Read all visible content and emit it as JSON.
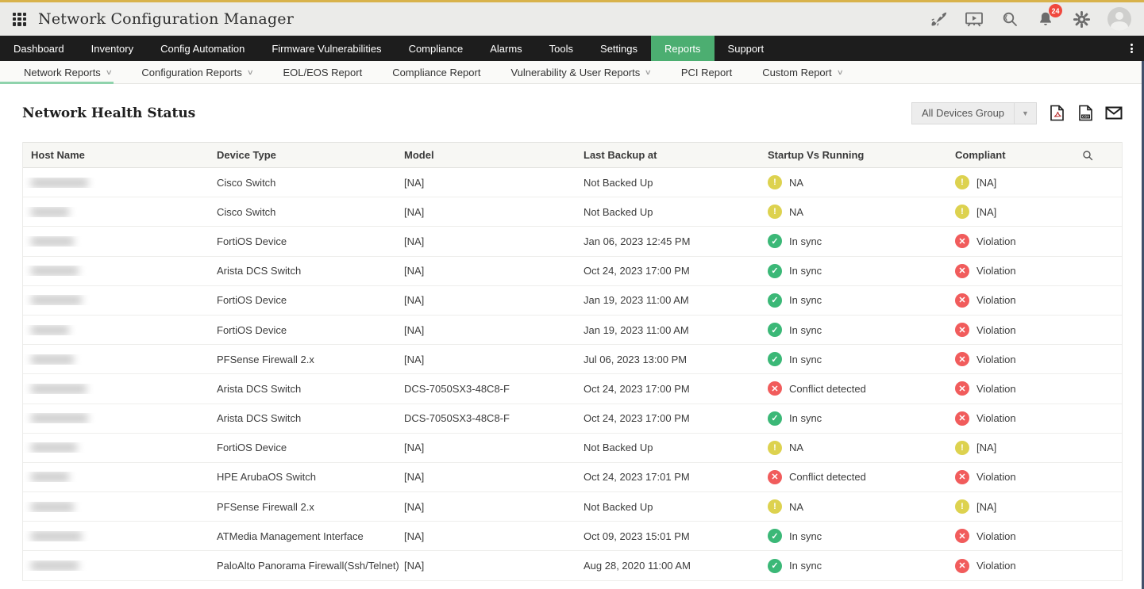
{
  "colors": {
    "accent": "#4cae71",
    "ok": "#3bb877",
    "warning": "#ddd24f",
    "error": "#f15c5c",
    "top_line": "#d8b24b",
    "nav_bg": "#1d1d1d"
  },
  "topbar": {
    "title": "Network Configuration Manager",
    "notification_count": "24",
    "icons": [
      "apps-grid-icon",
      "rocket-icon",
      "presentation-icon",
      "search-icon",
      "bell-icon",
      "gear-icon",
      "avatar"
    ]
  },
  "nav": {
    "items": [
      {
        "label": "Dashboard",
        "active": false
      },
      {
        "label": "Inventory",
        "active": false
      },
      {
        "label": "Config Automation",
        "active": false
      },
      {
        "label": "Firmware Vulnerabilities",
        "active": false
      },
      {
        "label": "Compliance",
        "active": false
      },
      {
        "label": "Alarms",
        "active": false
      },
      {
        "label": "Tools",
        "active": false
      },
      {
        "label": "Settings",
        "active": false
      },
      {
        "label": "Reports",
        "active": true
      },
      {
        "label": "Support",
        "active": false
      }
    ]
  },
  "subnav": {
    "items": [
      {
        "label": "Network Reports",
        "chevron": true,
        "active": true
      },
      {
        "label": "Configuration Reports",
        "chevron": true,
        "active": false
      },
      {
        "label": "EOL/EOS Report",
        "chevron": false,
        "active": false
      },
      {
        "label": "Compliance Report",
        "chevron": false,
        "active": false
      },
      {
        "label": "Vulnerability & User Reports",
        "chevron": true,
        "active": false
      },
      {
        "label": "PCI Report",
        "chevron": false,
        "active": false
      },
      {
        "label": "Custom Report",
        "chevron": true,
        "active": false
      }
    ]
  },
  "page": {
    "title": "Network Health Status",
    "device_group_selector": {
      "value": "All Devices Group"
    },
    "export_icons": [
      "pdf-export-icon",
      "csv-export-icon",
      "email-report-icon"
    ]
  },
  "table": {
    "columns": [
      "Host Name",
      "Device Type",
      "Model",
      "Last Backup at",
      "Startup Vs Running",
      "Compliant"
    ],
    "host_redacted": true,
    "host_redacted_widths": [
      72,
      48,
      54,
      60,
      64,
      48,
      54,
      70,
      72,
      58,
      48,
      54,
      64,
      60
    ],
    "rows": [
      {
        "device_type": "Cisco Switch",
        "model": "[NA]",
        "last_backup": "Not Backed Up",
        "startup_vs_running": {
          "status": "warning",
          "label": "NA"
        },
        "compliant": {
          "status": "warning",
          "label": "[NA]"
        }
      },
      {
        "device_type": "Cisco Switch",
        "model": "[NA]",
        "last_backup": "Not Backed Up",
        "startup_vs_running": {
          "status": "warning",
          "label": "NA"
        },
        "compliant": {
          "status": "warning",
          "label": "[NA]"
        }
      },
      {
        "device_type": "FortiOS Device",
        "model": "[NA]",
        "last_backup": "Jan 06, 2023 12:45 PM",
        "startup_vs_running": {
          "status": "ok",
          "label": "In sync"
        },
        "compliant": {
          "status": "error",
          "label": "Violation"
        }
      },
      {
        "device_type": "Arista DCS Switch",
        "model": "[NA]",
        "last_backup": "Oct 24, 2023 17:00 PM",
        "startup_vs_running": {
          "status": "ok",
          "label": "In sync"
        },
        "compliant": {
          "status": "error",
          "label": "Violation"
        }
      },
      {
        "device_type": "FortiOS Device",
        "model": "[NA]",
        "last_backup": "Jan 19, 2023 11:00 AM",
        "startup_vs_running": {
          "status": "ok",
          "label": "In sync"
        },
        "compliant": {
          "status": "error",
          "label": "Violation"
        }
      },
      {
        "device_type": "FortiOS Device",
        "model": "[NA]",
        "last_backup": "Jan 19, 2023 11:00 AM",
        "startup_vs_running": {
          "status": "ok",
          "label": "In sync"
        },
        "compliant": {
          "status": "error",
          "label": "Violation"
        }
      },
      {
        "device_type": "PFSense Firewall 2.x",
        "model": "[NA]",
        "last_backup": "Jul 06, 2023 13:00 PM",
        "startup_vs_running": {
          "status": "ok",
          "label": "In sync"
        },
        "compliant": {
          "status": "error",
          "label": "Violation"
        }
      },
      {
        "device_type": "Arista DCS Switch",
        "model": "DCS-7050SX3-48C8-F",
        "last_backup": "Oct 24, 2023 17:00 PM",
        "startup_vs_running": {
          "status": "error",
          "label": "Conflict detected"
        },
        "compliant": {
          "status": "error",
          "label": "Violation"
        }
      },
      {
        "device_type": "Arista DCS Switch",
        "model": "DCS-7050SX3-48C8-F",
        "last_backup": "Oct 24, 2023 17:00 PM",
        "startup_vs_running": {
          "status": "ok",
          "label": "In sync"
        },
        "compliant": {
          "status": "error",
          "label": "Violation"
        }
      },
      {
        "device_type": "FortiOS Device",
        "model": "[NA]",
        "last_backup": "Not Backed Up",
        "startup_vs_running": {
          "status": "warning",
          "label": "NA"
        },
        "compliant": {
          "status": "warning",
          "label": "[NA]"
        }
      },
      {
        "device_type": "HPE ArubaOS Switch",
        "model": "[NA]",
        "last_backup": "Oct 24, 2023 17:01 PM",
        "startup_vs_running": {
          "status": "error",
          "label": "Conflict detected"
        },
        "compliant": {
          "status": "error",
          "label": "Violation"
        }
      },
      {
        "device_type": "PFSense Firewall 2.x",
        "model": "[NA]",
        "last_backup": "Not Backed Up",
        "startup_vs_running": {
          "status": "warning",
          "label": "NA"
        },
        "compliant": {
          "status": "warning",
          "label": "[NA]"
        }
      },
      {
        "device_type": "ATMedia Management Interface",
        "model": "[NA]",
        "last_backup": "Oct 09, 2023 15:01 PM",
        "startup_vs_running": {
          "status": "ok",
          "label": "In sync"
        },
        "compliant": {
          "status": "error",
          "label": "Violation"
        }
      },
      {
        "device_type": "PaloAlto Panorama Firewall(Ssh/Telnet)",
        "model": "[NA]",
        "last_backup": "Aug 28, 2020 11:00 AM",
        "startup_vs_running": {
          "status": "ok",
          "label": "In sync"
        },
        "compliant": {
          "status": "error",
          "label": "Violation"
        }
      }
    ]
  }
}
